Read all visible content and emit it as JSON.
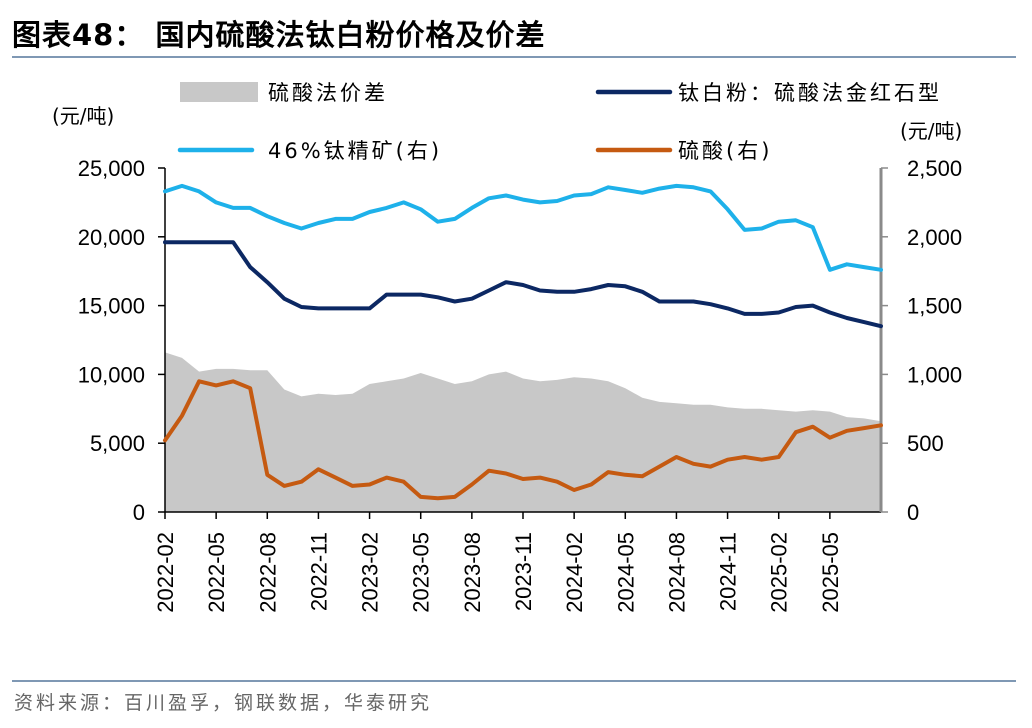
{
  "title": "图表48： 国内硫酸法钛白粉价格及价差",
  "source": "资料来源：百川盈孚，钢联数据，华泰研究",
  "chart_data": {
    "type": "line",
    "left_unit": "(元/吨)",
    "right_unit": "(元/吨)",
    "y_left": {
      "min": 0,
      "max": 25000,
      "ticks": [
        0,
        5000,
        10000,
        15000,
        20000,
        25000
      ],
      "tick_labels": [
        "0",
        "5,000",
        "10,000",
        "15,000",
        "20,000",
        "25,000"
      ]
    },
    "y_right": {
      "min": 0,
      "max": 2500,
      "ticks": [
        0,
        500,
        1000,
        1500,
        2000,
        2500
      ],
      "tick_labels": [
        "0",
        "500",
        "1,000",
        "1,500",
        "2,000",
        "2,500"
      ]
    },
    "x": {
      "start": "2022-02",
      "end": "2025-08",
      "tick_labels": [
        "2022-02",
        "2022-05",
        "2022-08",
        "2022-11",
        "2023-02",
        "2023-05",
        "2023-08",
        "2023-11",
        "2024-02",
        "2024-05",
        "2024-08",
        "2024-11",
        "2025-02",
        "2025-05"
      ]
    },
    "grid": false,
    "legend_position": "top",
    "series": [
      {
        "name": "硫酸法价差",
        "kind": "area",
        "axis": "left",
        "color": "#c8c8c8",
        "points": [
          [
            "2022-02",
            11600
          ],
          [
            "2022-03",
            11200
          ],
          [
            "2022-04",
            10200
          ],
          [
            "2022-05",
            10400
          ],
          [
            "2022-06",
            10400
          ],
          [
            "2022-07",
            10300
          ],
          [
            "2022-08",
            10300
          ],
          [
            "2022-09",
            8900
          ],
          [
            "2022-10",
            8400
          ],
          [
            "2022-11",
            8600
          ],
          [
            "2022-12",
            8500
          ],
          [
            "2023-01",
            8600
          ],
          [
            "2023-02",
            9300
          ],
          [
            "2023-03",
            9500
          ],
          [
            "2023-04",
            9700
          ],
          [
            "2023-05",
            10100
          ],
          [
            "2023-06",
            9700
          ],
          [
            "2023-07",
            9300
          ],
          [
            "2023-08",
            9500
          ],
          [
            "2023-09",
            10000
          ],
          [
            "2023-10",
            10200
          ],
          [
            "2023-11",
            9700
          ],
          [
            "2023-12",
            9500
          ],
          [
            "2024-01",
            9600
          ],
          [
            "2024-02",
            9800
          ],
          [
            "2024-03",
            9700
          ],
          [
            "2024-04",
            9500
          ],
          [
            "2024-05",
            9000
          ],
          [
            "2024-06",
            8300
          ],
          [
            "2024-07",
            8000
          ],
          [
            "2024-08",
            7900
          ],
          [
            "2024-09",
            7800
          ],
          [
            "2024-10",
            7800
          ],
          [
            "2024-11",
            7600
          ],
          [
            "2024-12",
            7500
          ],
          [
            "2025-01",
            7500
          ],
          [
            "2025-02",
            7400
          ],
          [
            "2025-03",
            7300
          ],
          [
            "2025-04",
            7400
          ],
          [
            "2025-05",
            7300
          ],
          [
            "2025-06",
            6900
          ],
          [
            "2025-07",
            6800
          ],
          [
            "2025-08",
            6600
          ]
        ]
      },
      {
        "name": "钛白粉：硫酸法金红石型",
        "kind": "line",
        "axis": "left",
        "color": "#0c2863",
        "points": [
          [
            "2022-02",
            19600
          ],
          [
            "2022-03",
            19600
          ],
          [
            "2022-04",
            19600
          ],
          [
            "2022-05",
            19600
          ],
          [
            "2022-06",
            19600
          ],
          [
            "2022-07",
            17800
          ],
          [
            "2022-08",
            16700
          ],
          [
            "2022-09",
            15500
          ],
          [
            "2022-10",
            14900
          ],
          [
            "2022-11",
            14800
          ],
          [
            "2022-12",
            14800
          ],
          [
            "2023-01",
            14800
          ],
          [
            "2023-02",
            14800
          ],
          [
            "2023-03",
            15800
          ],
          [
            "2023-04",
            15800
          ],
          [
            "2023-05",
            15800
          ],
          [
            "2023-06",
            15600
          ],
          [
            "2023-07",
            15300
          ],
          [
            "2023-08",
            15500
          ],
          [
            "2023-09",
            16100
          ],
          [
            "2023-10",
            16700
          ],
          [
            "2023-11",
            16500
          ],
          [
            "2023-12",
            16100
          ],
          [
            "2024-01",
            16000
          ],
          [
            "2024-02",
            16000
          ],
          [
            "2024-03",
            16200
          ],
          [
            "2024-04",
            16500
          ],
          [
            "2024-05",
            16400
          ],
          [
            "2024-06",
            16000
          ],
          [
            "2024-07",
            15300
          ],
          [
            "2024-08",
            15300
          ],
          [
            "2024-09",
            15300
          ],
          [
            "2024-10",
            15100
          ],
          [
            "2024-11",
            14800
          ],
          [
            "2024-12",
            14400
          ],
          [
            "2025-01",
            14400
          ],
          [
            "2025-02",
            14500
          ],
          [
            "2025-03",
            14900
          ],
          [
            "2025-04",
            15000
          ],
          [
            "2025-05",
            14500
          ],
          [
            "2025-06",
            14100
          ],
          [
            "2025-07",
            13800
          ],
          [
            "2025-08",
            13500
          ]
        ]
      },
      {
        "name": "46%钛精矿(右)",
        "kind": "line",
        "axis": "right",
        "color": "#1eb1ea",
        "points": [
          [
            "2022-02",
            2330
          ],
          [
            "2022-03",
            2370
          ],
          [
            "2022-04",
            2330
          ],
          [
            "2022-05",
            2250
          ],
          [
            "2022-06",
            2210
          ],
          [
            "2022-07",
            2210
          ],
          [
            "2022-08",
            2150
          ],
          [
            "2022-09",
            2100
          ],
          [
            "2022-10",
            2060
          ],
          [
            "2022-11",
            2100
          ],
          [
            "2022-12",
            2130
          ],
          [
            "2023-01",
            2130
          ],
          [
            "2023-02",
            2180
          ],
          [
            "2023-03",
            2210
          ],
          [
            "2023-04",
            2250
          ],
          [
            "2023-05",
            2200
          ],
          [
            "2023-06",
            2110
          ],
          [
            "2023-07",
            2130
          ],
          [
            "2023-08",
            2210
          ],
          [
            "2023-09",
            2280
          ],
          [
            "2023-10",
            2300
          ],
          [
            "2023-11",
            2270
          ],
          [
            "2023-12",
            2250
          ],
          [
            "2024-01",
            2260
          ],
          [
            "2024-02",
            2300
          ],
          [
            "2024-03",
            2310
          ],
          [
            "2024-04",
            2360
          ],
          [
            "2024-05",
            2340
          ],
          [
            "2024-06",
            2320
          ],
          [
            "2024-07",
            2350
          ],
          [
            "2024-08",
            2370
          ],
          [
            "2024-09",
            2360
          ],
          [
            "2024-10",
            2330
          ],
          [
            "2024-11",
            2200
          ],
          [
            "2024-12",
            2050
          ],
          [
            "2025-01",
            2060
          ],
          [
            "2025-02",
            2110
          ],
          [
            "2025-03",
            2120
          ],
          [
            "2025-04",
            2070
          ],
          [
            "2025-05",
            1760
          ],
          [
            "2025-06",
            1800
          ],
          [
            "2025-07",
            1780
          ],
          [
            "2025-08",
            1760
          ]
        ]
      },
      {
        "name": "硫酸(右)",
        "kind": "line",
        "axis": "right",
        "color": "#c55a11",
        "points": [
          [
            "2022-02",
            520
          ],
          [
            "2022-03",
            700
          ],
          [
            "2022-04",
            950
          ],
          [
            "2022-05",
            920
          ],
          [
            "2022-06",
            950
          ],
          [
            "2022-07",
            900
          ],
          [
            "2022-08",
            270
          ],
          [
            "2022-09",
            190
          ],
          [
            "2022-10",
            220
          ],
          [
            "2022-11",
            310
          ],
          [
            "2022-12",
            250
          ],
          [
            "2023-01",
            190
          ],
          [
            "2023-02",
            200
          ],
          [
            "2023-03",
            250
          ],
          [
            "2023-04",
            220
          ],
          [
            "2023-05",
            110
          ],
          [
            "2023-06",
            100
          ],
          [
            "2023-07",
            110
          ],
          [
            "2023-08",
            200
          ],
          [
            "2023-09",
            300
          ],
          [
            "2023-10",
            280
          ],
          [
            "2023-11",
            240
          ],
          [
            "2023-12",
            250
          ],
          [
            "2024-01",
            220
          ],
          [
            "2024-02",
            160
          ],
          [
            "2024-03",
            200
          ],
          [
            "2024-04",
            290
          ],
          [
            "2024-05",
            270
          ],
          [
            "2024-06",
            260
          ],
          [
            "2024-07",
            330
          ],
          [
            "2024-08",
            400
          ],
          [
            "2024-09",
            350
          ],
          [
            "2024-10",
            330
          ],
          [
            "2024-11",
            380
          ],
          [
            "2024-12",
            400
          ],
          [
            "2025-01",
            380
          ],
          [
            "2025-02",
            400
          ],
          [
            "2025-03",
            580
          ],
          [
            "2025-04",
            620
          ],
          [
            "2025-05",
            540
          ],
          [
            "2025-06",
            590
          ],
          [
            "2025-07",
            610
          ],
          [
            "2025-08",
            630
          ]
        ]
      }
    ]
  }
}
